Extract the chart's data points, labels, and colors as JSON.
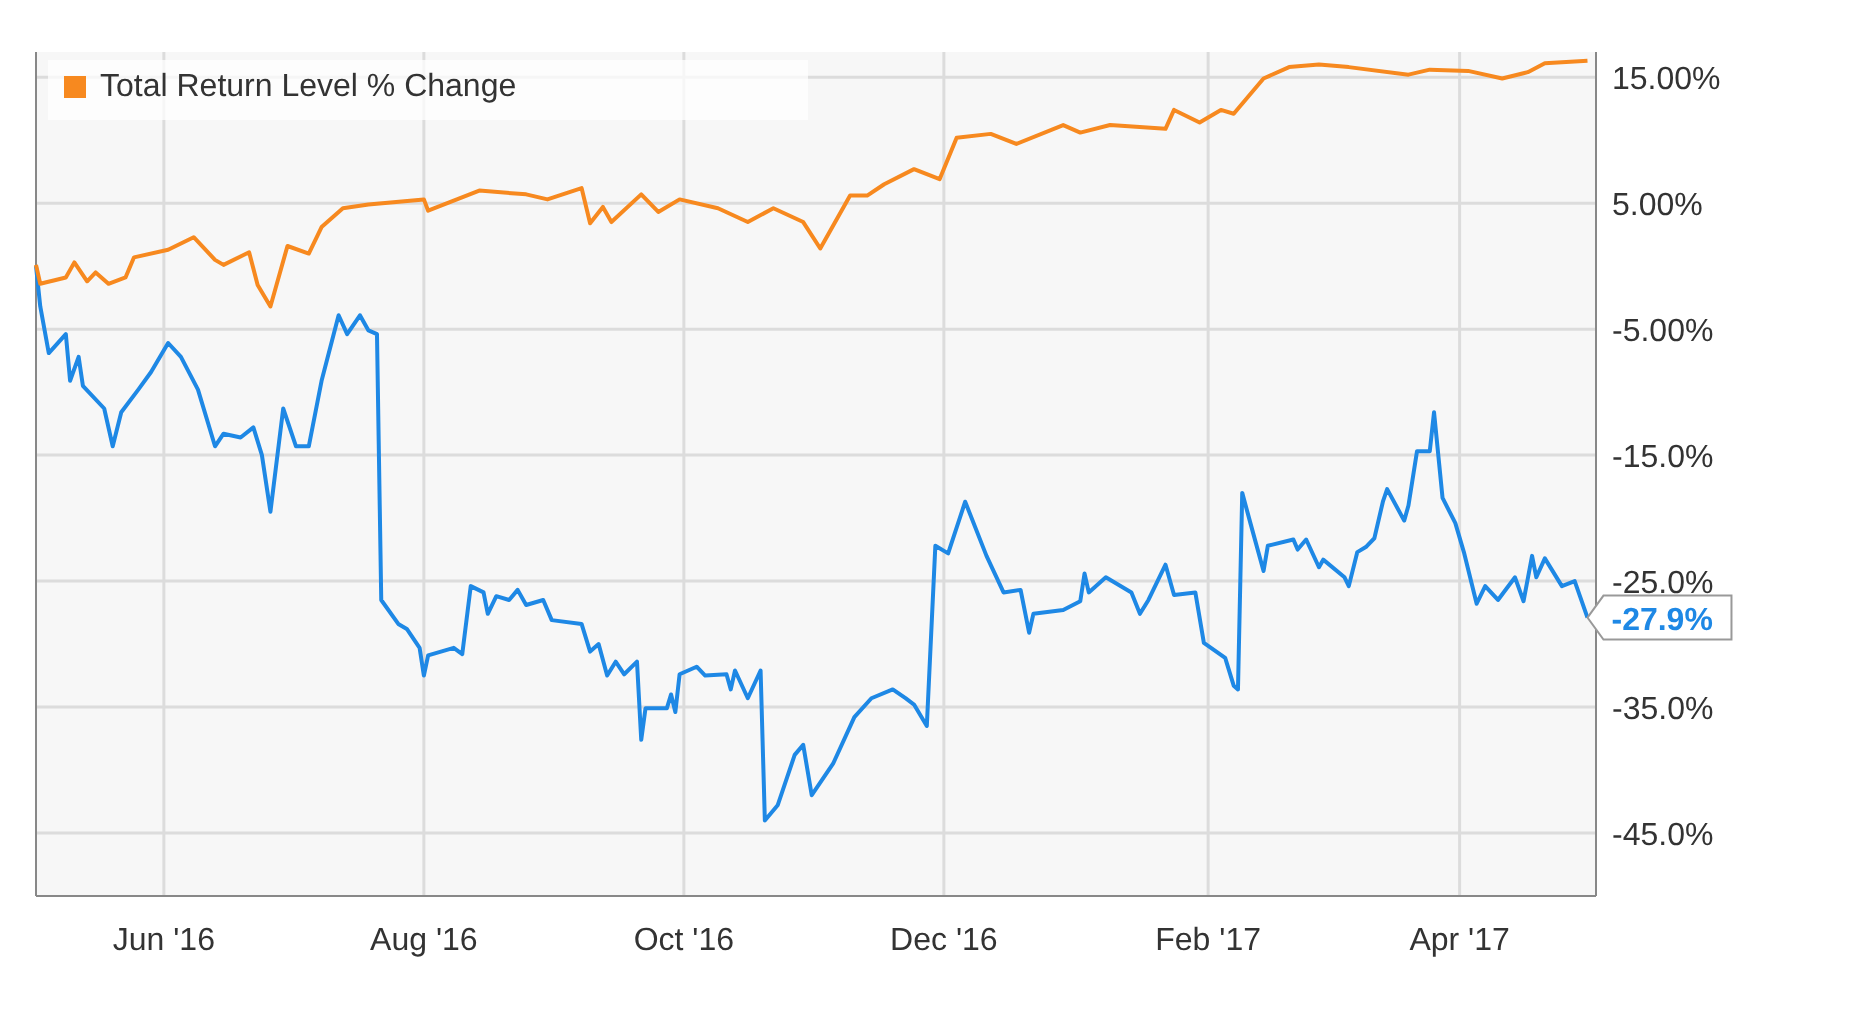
{
  "chart_data": {
    "type": "line",
    "legend": "top left",
    "grid": true,
    "xlim": [
      "2016-05-02",
      "2017-05-03"
    ],
    "ylim": [
      -50,
      17
    ],
    "xticks": [
      {
        "value": "2016-06-01",
        "label": "Jun '16"
      },
      {
        "value": "2016-08-01",
        "label": "Aug '16"
      },
      {
        "value": "2016-10-01",
        "label": "Oct '16"
      },
      {
        "value": "2016-12-01",
        "label": "Dec '16"
      },
      {
        "value": "2017-02-01",
        "label": "Feb '17"
      },
      {
        "value": "2017-04-01",
        "label": "Apr '17"
      }
    ],
    "yticks": [
      {
        "value": 15,
        "label": "15.00%"
      },
      {
        "value": 5,
        "label": "5.00%"
      },
      {
        "value": -5,
        "label": "-5.00%"
      },
      {
        "value": -15,
        "label": "-15.0%"
      },
      {
        "value": -25,
        "label": "-25.0%"
      },
      {
        "value": -35,
        "label": "-35.0%"
      },
      {
        "value": -45,
        "label": "-45.0%"
      }
    ],
    "annotations": [
      {
        "text": "-27.9%",
        "x": "2017-05-01",
        "y": -27.9
      }
    ],
    "series": [
      {
        "color": "#1e88e5",
        "x": [
          "2016-05-02",
          "2016-05-03",
          "2016-05-05",
          "2016-05-09",
          "2016-05-10",
          "2016-05-12",
          "2016-05-13",
          "2016-05-18",
          "2016-05-20",
          "2016-05-22",
          "2016-05-26",
          "2016-05-29",
          "2016-06-02",
          "2016-06-05",
          "2016-06-09",
          "2016-06-13",
          "2016-06-15",
          "2016-06-19",
          "2016-06-22",
          "2016-06-24",
          "2016-06-26",
          "2016-06-29",
          "2016-07-02",
          "2016-07-05",
          "2016-07-08",
          "2016-07-12",
          "2016-07-14",
          "2016-07-17",
          "2016-07-19",
          "2016-07-21",
          "2016-07-22",
          "2016-07-26",
          "2016-07-28",
          "2016-07-31",
          "2016-08-01",
          "2016-08-02",
          "2016-08-08",
          "2016-08-10",
          "2016-08-12",
          "2016-08-15",
          "2016-08-16",
          "2016-08-18",
          "2016-08-21",
          "2016-08-23",
          "2016-08-25",
          "2016-08-29",
          "2016-08-31",
          "2016-09-07",
          "2016-09-09",
          "2016-09-11",
          "2016-09-13",
          "2016-09-15",
          "2016-09-17",
          "2016-09-20",
          "2016-09-21",
          "2016-09-22",
          "2016-09-27",
          "2016-09-28",
          "2016-09-29",
          "2016-09-30",
          "2016-10-04",
          "2016-10-06",
          "2016-10-11",
          "2016-10-12",
          "2016-10-13",
          "2016-10-16",
          "2016-10-19",
          "2016-10-20",
          "2016-10-23",
          "2016-10-27",
          "2016-10-29",
          "2016-10-31",
          "2016-11-05",
          "2016-11-10",
          "2016-11-14",
          "2016-11-19",
          "2016-11-22",
          "2016-11-24",
          "2016-11-27",
          "2016-11-29",
          "2016-12-02",
          "2016-12-06",
          "2016-12-11",
          "2016-12-15",
          "2016-12-19",
          "2016-12-21",
          "2016-12-22",
          "2016-12-29",
          "2017-01-02",
          "2017-01-03",
          "2017-01-04",
          "2017-01-08",
          "2017-01-14",
          "2017-01-16",
          "2017-01-18",
          "2017-01-22",
          "2017-01-24",
          "2017-01-29",
          "2017-01-31",
          "2017-02-05",
          "2017-02-07",
          "2017-02-08",
          "2017-02-09",
          "2017-02-11",
          "2017-02-14",
          "2017-02-15",
          "2017-02-21",
          "2017-02-22",
          "2017-02-24",
          "2017-02-27",
          "2017-02-28",
          "2017-03-05",
          "2017-03-06",
          "2017-03-08",
          "2017-03-10",
          "2017-03-12",
          "2017-03-14",
          "2017-03-15",
          "2017-03-19",
          "2017-03-20",
          "2017-03-22",
          "2017-03-25",
          "2017-03-26",
          "2017-03-28",
          "2017-03-31",
          "2017-04-02",
          "2017-04-05",
          "2017-04-07",
          "2017-04-10",
          "2017-04-14",
          "2017-04-16",
          "2017-04-18",
          "2017-04-19",
          "2017-04-21",
          "2017-04-25",
          "2017-04-28",
          "2017-05-01"
        ],
        "values": [
          0,
          -3.2,
          -6.9,
          -5.4,
          -9.1,
          -7.2,
          -9.5,
          -11.3,
          -14.3,
          -11.6,
          -9.8,
          -8.4,
          -6.1,
          -7.2,
          -9.8,
          -14.3,
          -13.3,
          -13.6,
          -12.8,
          -15.0,
          -19.5,
          -11.3,
          -14.3,
          -14.3,
          -9.1,
          -3.9,
          -5.4,
          -3.9,
          -5.1,
          -5.4,
          -26.5,
          -28.4,
          -28.8,
          -30.3,
          -32.5,
          -30.9,
          -30.3,
          -30.8,
          -25.4,
          -25.9,
          -27.6,
          -26.2,
          -26.5,
          -25.7,
          -26.9,
          -26.5,
          -28.1,
          -28.4,
          -30.6,
          -30.0,
          -32.5,
          -31.4,
          -32.4,
          -31.4,
          -37.6,
          -35.1,
          -35.1,
          -34.0,
          -35.4,
          -32.4,
          -31.8,
          -32.5,
          -32.4,
          -33.6,
          -32.1,
          -34.3,
          -32.1,
          -44.0,
          -42.8,
          -38.8,
          -38.0,
          -42.0,
          -39.5,
          -35.8,
          -34.3,
          -33.6,
          -34.3,
          -34.8,
          -36.5,
          -22.2,
          -22.8,
          -18.7,
          -23.0,
          -25.9,
          -25.7,
          -29.1,
          -27.6,
          -27.3,
          -26.6,
          -24.4,
          -25.9,
          -24.7,
          -25.9,
          -27.6,
          -26.5,
          -23.7,
          -26.1,
          -25.9,
          -29.9,
          -31.1,
          -33.3,
          -33.6,
          -18.0,
          -20.5,
          -24.2,
          -22.2,
          -21.7,
          -22.5,
          -21.7,
          -23.9,
          -23.3,
          -24.7,
          -25.4,
          -22.7,
          -22.3,
          -21.6,
          -18.7,
          -17.7,
          -20.2,
          -19.0,
          -14.7,
          -14.7,
          -11.6,
          -18.4,
          -20.4,
          -22.7,
          -26.8,
          -25.4,
          -26.5,
          -24.7,
          -26.6,
          -23.0,
          -24.7,
          -23.2,
          -25.4,
          -25.0,
          -27.9
        ]
      },
      {
        "name": "Total Return Level % Change",
        "color": "#f7891f",
        "x": [
          "2016-05-02",
          "2016-05-03",
          "2016-05-09",
          "2016-05-11",
          "2016-05-14",
          "2016-05-16",
          "2016-05-19",
          "2016-05-23",
          "2016-05-25",
          "2016-06-02",
          "2016-06-08",
          "2016-06-13",
          "2016-06-15",
          "2016-06-21",
          "2016-06-23",
          "2016-06-26",
          "2016-06-30",
          "2016-07-05",
          "2016-07-08",
          "2016-07-13",
          "2016-07-19",
          "2016-08-01",
          "2016-08-02",
          "2016-08-14",
          "2016-08-25",
          "2016-08-30",
          "2016-09-07",
          "2016-09-09",
          "2016-09-12",
          "2016-09-14",
          "2016-09-21",
          "2016-09-25",
          "2016-09-30",
          "2016-10-09",
          "2016-10-16",
          "2016-10-22",
          "2016-10-29",
          "2016-11-02",
          "2016-11-09",
          "2016-11-13",
          "2016-11-17",
          "2016-11-24",
          "2016-11-30",
          "2016-12-04",
          "2016-12-12",
          "2016-12-18",
          "2016-12-29",
          "2017-01-02",
          "2017-01-09",
          "2017-01-22",
          "2017-01-24",
          "2017-01-30",
          "2017-02-04",
          "2017-02-07",
          "2017-02-14",
          "2017-02-20",
          "2017-02-27",
          "2017-03-06",
          "2017-03-20",
          "2017-03-25",
          "2017-04-03",
          "2017-04-11",
          "2017-04-17",
          "2017-04-21",
          "2017-05-01"
        ],
        "values": [
          0.1,
          -1.4,
          -0.9,
          0.3,
          -1.2,
          -0.5,
          -1.4,
          -0.9,
          0.7,
          1.3,
          2.3,
          0.5,
          0.1,
          1.1,
          -1.5,
          -3.2,
          1.6,
          1.0,
          3.1,
          4.6,
          4.9,
          5.3,
          4.4,
          6.0,
          5.7,
          5.3,
          6.2,
          3.4,
          4.7,
          3.5,
          5.7,
          4.3,
          5.3,
          4.6,
          3.5,
          4.6,
          3.5,
          1.4,
          5.6,
          5.6,
          6.5,
          7.7,
          6.9,
          10.2,
          10.5,
          9.7,
          11.2,
          10.6,
          11.2,
          10.9,
          12.4,
          11.4,
          12.4,
          12.1,
          14.9,
          15.8,
          16.0,
          15.8,
          15.2,
          15.6,
          15.5,
          14.9,
          15.4,
          16.1,
          16.3
        ]
      }
    ]
  }
}
